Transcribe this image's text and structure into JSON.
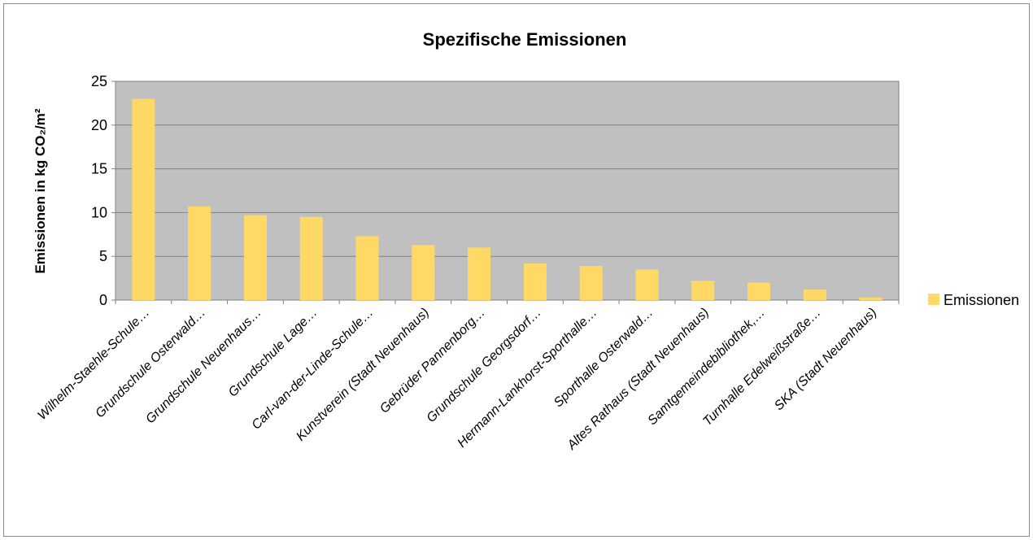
{
  "chart_data": {
    "type": "bar",
    "title": "Spezifische Emissionen",
    "xlabel": "",
    "ylabel": "Emissionen in kg CO₂/m²",
    "ylim": [
      0,
      25
    ],
    "yticks": [
      0,
      5,
      10,
      15,
      20,
      25
    ],
    "grid": true,
    "legend_position": "right",
    "categories": [
      "Wilhelm-Staehle-Schule…",
      "Grundschule Osterwald…",
      "Grundschule Neuenhaus…",
      "Grundschule Lage…",
      "Carl-van-der-Linde-Schule…",
      "Kunstverein (Stadt Neuenhaus)",
      "Gebrüder Pannenborg…",
      "Grundschule Georgsdorf…",
      "Hermann-Lankhorst-Sporthalle…",
      "Sporthalle Osterwald…",
      "Altes Rathaus (Stadt Neuenhaus)",
      "Samtgemeindebibliothek,…",
      "Turnhalle Edelweißstraße…",
      "SKA (Stadt Neuenhaus)"
    ],
    "series": [
      {
        "name": "Emissionen",
        "color": "#FFD966",
        "values": [
          23.0,
          10.7,
          9.7,
          9.5,
          7.3,
          6.3,
          6.0,
          4.2,
          3.9,
          3.5,
          2.2,
          2.0,
          1.2,
          0.3
        ]
      }
    ],
    "plot_background": "#C0C0C0"
  }
}
